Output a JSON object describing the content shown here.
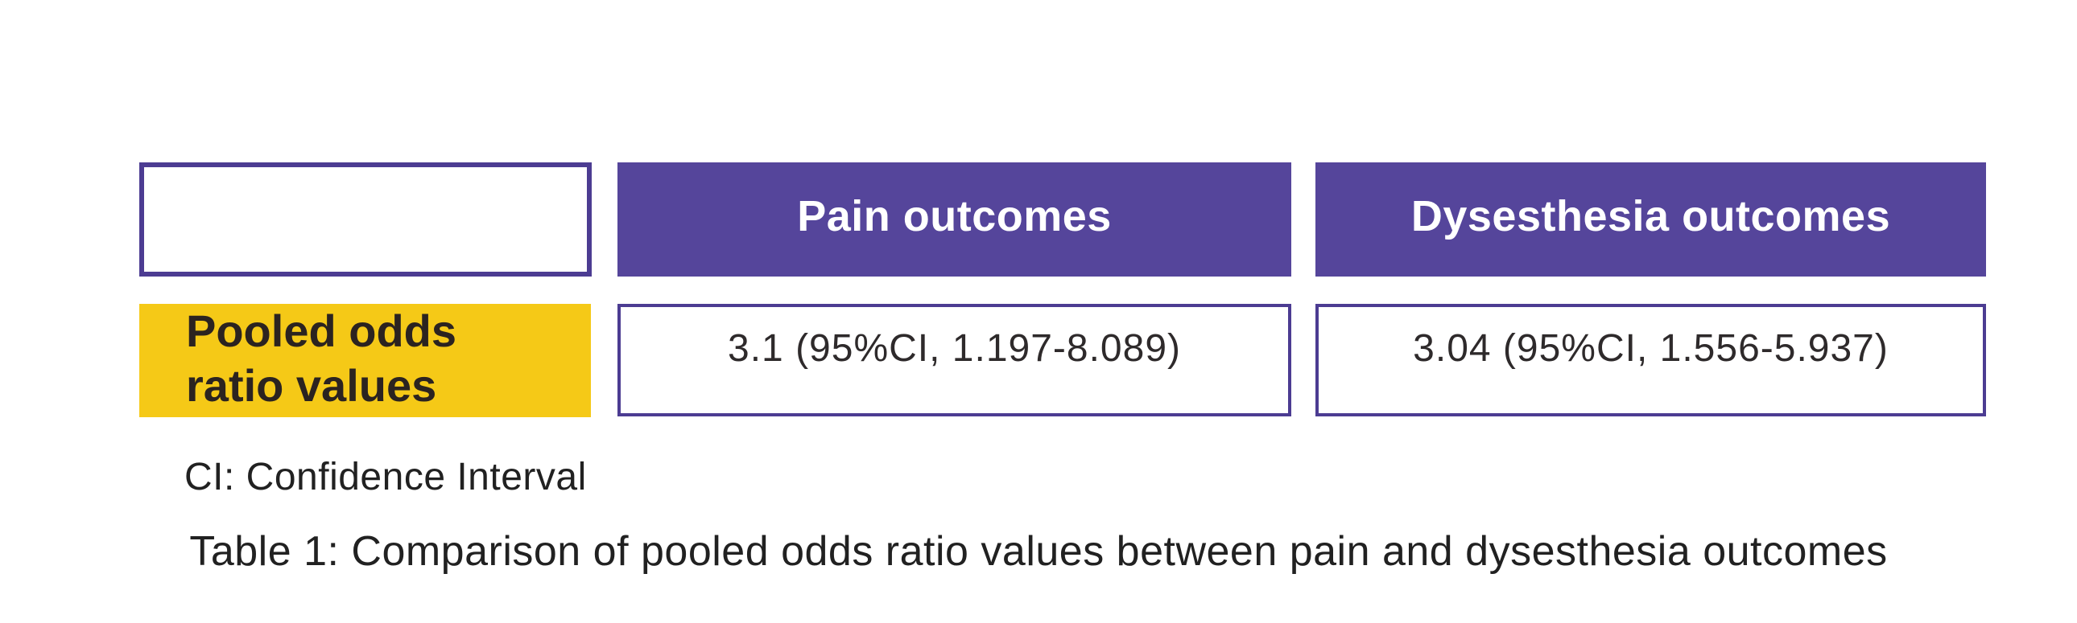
{
  "figure": {
    "footnote": "CI: Confidence Interval",
    "caption": "Table 1: Comparison of pooled odds ratio values between pain and dysesthesia outcomes"
  },
  "table": {
    "header": {
      "empty_label": "",
      "col_pain": "Pain outcomes",
      "col_dysesthesia": "Dysesthesia outcomes"
    },
    "row": {
      "label": "Pooled odds ratio values",
      "label_lines": [
        "Pooled odds",
        "ratio values"
      ],
      "pain_value": "3.1 (95%CI, 1.197-8.089)",
      "dysesthesia_value": "3.04 (95%CI, 1.556-5.937)"
    }
  },
  "chart_data": {
    "type": "table",
    "title": "Table 1: Comparison of pooled odds ratio values between pain and dysesthesia outcomes",
    "columns": [
      "",
      "Pain outcomes",
      "Dysesthesia outcomes"
    ],
    "rows": [
      [
        "Pooled odds ratio values",
        "3.1 (95%CI, 1.197-8.089)",
        "3.04 (95%CI, 1.556-5.937)"
      ]
    ],
    "values": {
      "pain_outcomes": {
        "pooled_odds_ratio": 3.1,
        "ci95_low": 1.197,
        "ci95_high": 8.089
      },
      "dysesthesia_outcomes": {
        "pooled_odds_ratio": 3.04,
        "ci95_low": 1.556,
        "ci95_high": 5.937
      }
    },
    "footnote": "CI: Confidence Interval"
  },
  "colors": {
    "header_purple": "#55459B",
    "border_purple": "#4C3C92",
    "label_yellow": "#F5C917",
    "header_text": "#FFFFFF",
    "label_text": "#2B2320",
    "value_text": "#2E2A2B",
    "body_text": "#212121",
    "background": "#FFFFFF"
  }
}
